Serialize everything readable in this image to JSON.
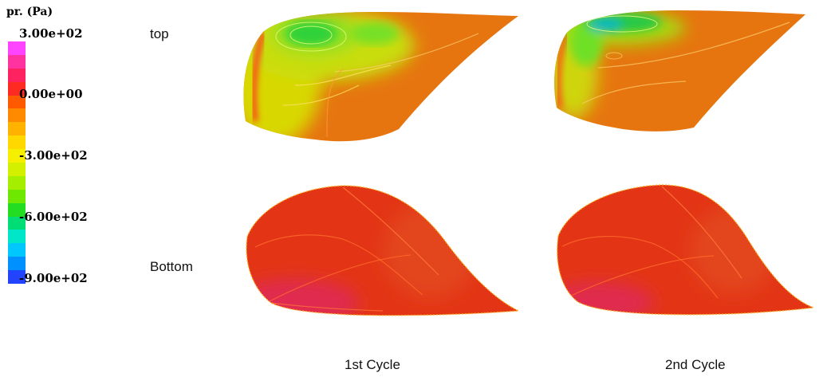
{
  "colorbar": {
    "title": "pr. (Pa)",
    "ticks": [
      "3.00e+02",
      "0.00e+00",
      "-3.00e+02",
      "-6.00e+02",
      "-9.00e+02"
    ],
    "range": [
      -900,
      300
    ],
    "colors": [
      "#ff44ff",
      "#ff33a0",
      "#ff2260",
      "#ff2a22",
      "#ff5a00",
      "#ff8a00",
      "#ffb200",
      "#ffd800",
      "#f6f000",
      "#d2f000",
      "#a6ee00",
      "#6ee800",
      "#22dd22",
      "#00dd77",
      "#00e6c8",
      "#00c8ff",
      "#0090ff",
      "#2244ff"
    ]
  },
  "rows": {
    "top": "top",
    "bottom": "Bottom"
  },
  "columns": {
    "first": "1st Cycle",
    "second": "2nd Cycle"
  }
}
